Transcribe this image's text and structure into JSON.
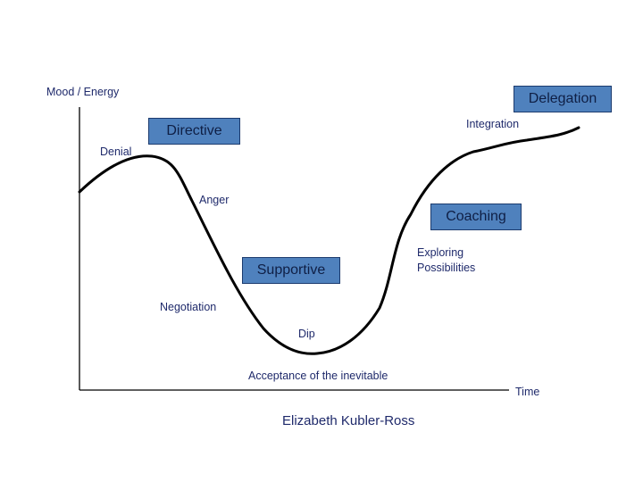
{
  "axes": {
    "y_label": "Mood / Energy",
    "x_label": "Time"
  },
  "stages": {
    "denial": "Denial",
    "anger": "Anger",
    "negotiation": "Negotiation",
    "dip": "Dip",
    "acceptance": "Acceptance of the inevitable",
    "exploring_line1": "Exploring",
    "exploring_line2": "Possibilities",
    "integration": "Integration"
  },
  "styles": {
    "directive": "Directive",
    "supportive": "Supportive",
    "coaching": "Coaching",
    "delegation": "Delegation"
  },
  "credit": "Elizabeth Kubler-Ross",
  "colors": {
    "box_fill": "#4f81bd",
    "box_border": "#1c3b6e",
    "text": "#1f2a6b",
    "curve": "#000000",
    "axis": "#000000"
  }
}
